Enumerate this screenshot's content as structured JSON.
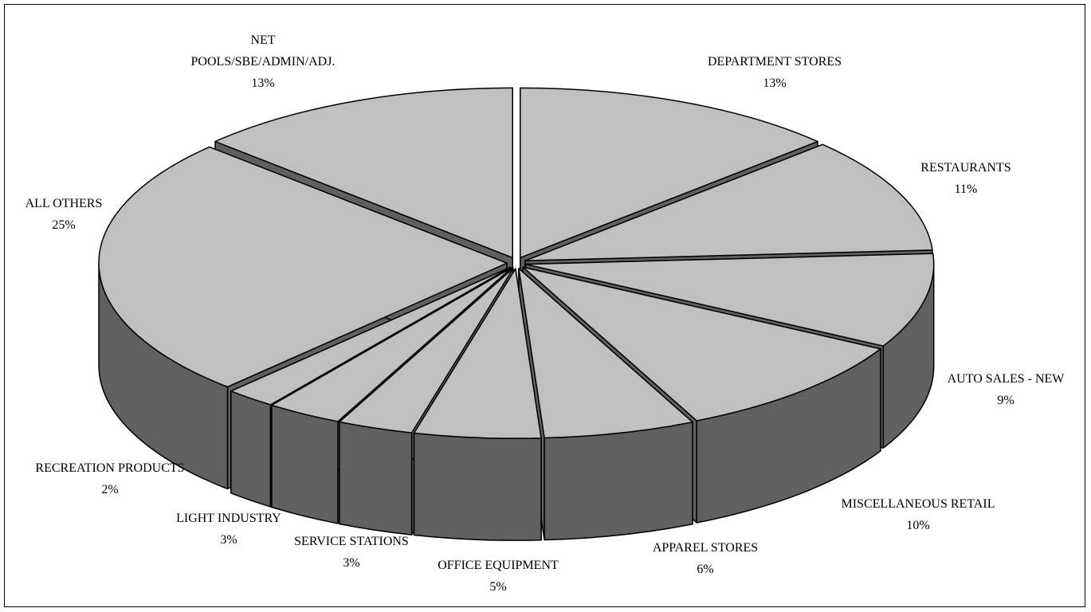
{
  "chart_data": {
    "type": "pie",
    "categories": [
      "DEPARTMENT STORES",
      "RESTAURANTS",
      "AUTO SALES - NEW",
      "MISCELLANEOUS RETAIL",
      "APPAREL STORES",
      "OFFICE EQUIPMENT",
      "SERVICE STATIONS",
      "LIGHT INDUSTRY",
      "RECREATION PRODUCTS",
      "ALL OTHERS",
      "NET POOLS/SBE/ADMIN/ADJ."
    ],
    "values": [
      13,
      11,
      9,
      10,
      6,
      5,
      3,
      3,
      2,
      25,
      13
    ],
    "value_labels": [
      "13%",
      "11%",
      "9%",
      "10%",
      "6%",
      "5%",
      "3%",
      "3%",
      "2%",
      "25%",
      "13%"
    ],
    "color": "#c0c0c0",
    "side_color": "#606060"
  }
}
